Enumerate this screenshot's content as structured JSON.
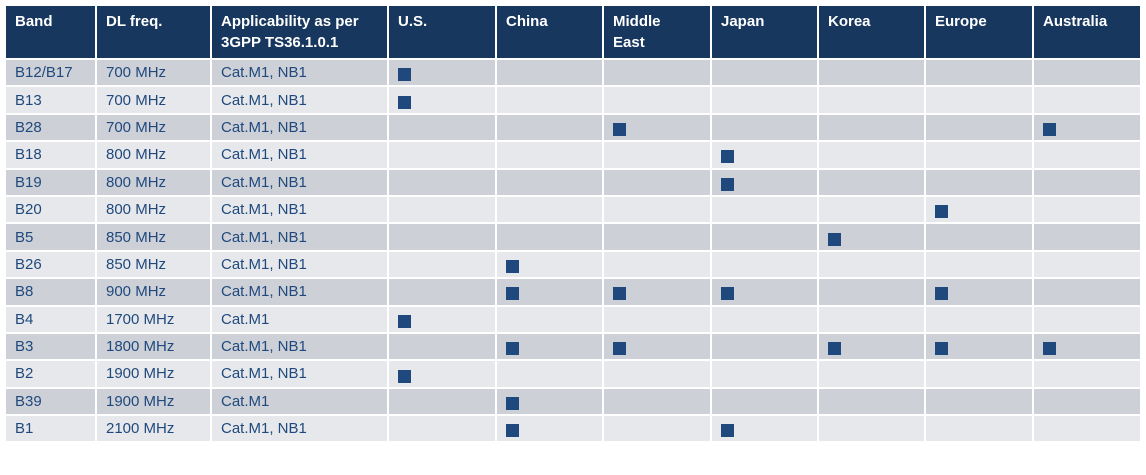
{
  "table": {
    "header": [
      "Band",
      "DL freq.",
      "Applicability as per 3GPP TS36.1.0.1",
      "U.S.",
      "China",
      "Middle East",
      "Japan",
      "Korea",
      "Europe",
      "Australia"
    ],
    "rows": [
      {
        "band": "B12/B17",
        "freq": "700 MHz",
        "applicability": "Cat.M1, NB1",
        "regions": [
          true,
          false,
          false,
          false,
          false,
          false,
          false
        ]
      },
      {
        "band": "B13",
        "freq": "700 MHz",
        "applicability": "Cat.M1, NB1",
        "regions": [
          true,
          false,
          false,
          false,
          false,
          false,
          false
        ]
      },
      {
        "band": "B28",
        "freq": "700 MHz",
        "applicability": "Cat.M1, NB1",
        "regions": [
          false,
          false,
          true,
          false,
          false,
          false,
          true
        ]
      },
      {
        "band": "B18",
        "freq": "800 MHz",
        "applicability": "Cat.M1, NB1",
        "regions": [
          false,
          false,
          false,
          true,
          false,
          false,
          false
        ]
      },
      {
        "band": "B19",
        "freq": "800 MHz",
        "applicability": "Cat.M1, NB1",
        "regions": [
          false,
          false,
          false,
          true,
          false,
          false,
          false
        ]
      },
      {
        "band": "B20",
        "freq": "800 MHz",
        "applicability": "Cat.M1, NB1",
        "regions": [
          false,
          false,
          false,
          false,
          false,
          true,
          false
        ]
      },
      {
        "band": "B5",
        "freq": "850 MHz",
        "applicability": "Cat.M1, NB1",
        "regions": [
          false,
          false,
          false,
          false,
          true,
          false,
          false
        ]
      },
      {
        "band": "B26",
        "freq": "850 MHz",
        "applicability": "Cat.M1, NB1",
        "regions": [
          false,
          true,
          false,
          false,
          false,
          false,
          false
        ]
      },
      {
        "band": "B8",
        "freq": "900 MHz",
        "applicability": "Cat.M1, NB1",
        "regions": [
          false,
          true,
          true,
          true,
          false,
          true,
          false
        ]
      },
      {
        "band": "B4",
        "freq": "1700 MHz",
        "applicability": "Cat.M1",
        "regions": [
          true,
          false,
          false,
          false,
          false,
          false,
          false
        ]
      },
      {
        "band": "B3",
        "freq": "1800 MHz",
        "applicability": "Cat.M1, NB1",
        "regions": [
          false,
          true,
          true,
          false,
          true,
          true,
          true
        ]
      },
      {
        "band": "B2",
        "freq": "1900 MHz",
        "applicability": "Cat.M1, NB1",
        "regions": [
          true,
          false,
          false,
          false,
          false,
          false,
          false
        ]
      },
      {
        "band": "B39",
        "freq": "1900 MHz",
        "applicability": "Cat.M1",
        "regions": [
          false,
          true,
          false,
          false,
          false,
          false,
          false
        ]
      },
      {
        "band": "B1",
        "freq": "2100 MHz",
        "applicability": "Cat.M1, NB1",
        "regions": [
          false,
          true,
          false,
          true,
          false,
          false,
          false
        ]
      }
    ]
  }
}
